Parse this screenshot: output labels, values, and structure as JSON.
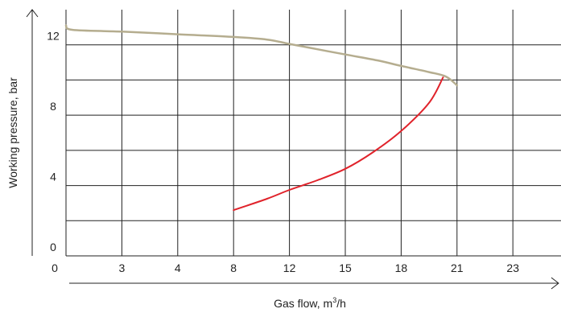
{
  "chart_data": {
    "type": "line",
    "xlabel": "Gas flow, m",
    "xlabel_sup": "3",
    "xlabel_unit": "/h",
    "ylabel": "Working pressure, bar",
    "x_tick_labels": [
      "0",
      "3",
      "4",
      "8",
      "12",
      "15",
      "18",
      "21",
      "23"
    ],
    "y_tick_labels": [
      "0",
      "4",
      "8",
      "12"
    ],
    "y_gridlines": [
      2,
      4,
      6,
      8,
      10,
      12
    ],
    "grid": true,
    "series": [
      {
        "color": "#b5ad8f",
        "x_index": [
          0.0,
          0.12,
          1.0,
          2.0,
          3.0,
          3.6,
          4.0,
          4.5,
          5.0,
          5.6,
          6.0,
          6.5,
          6.8,
          7.0
        ],
        "values": [
          13.1,
          12.85,
          12.75,
          12.6,
          12.45,
          12.3,
          12.05,
          11.75,
          11.45,
          11.1,
          10.8,
          10.45,
          10.2,
          9.7
        ]
      },
      {
        "color": "#e0232b",
        "x_index": [
          3.0,
          3.6,
          4.0,
          4.5,
          5.0,
          5.5,
          6.0,
          6.5,
          6.75
        ],
        "values": [
          2.6,
          3.25,
          3.75,
          4.3,
          4.95,
          5.9,
          7.1,
          8.7,
          10.15
        ]
      }
    ]
  }
}
